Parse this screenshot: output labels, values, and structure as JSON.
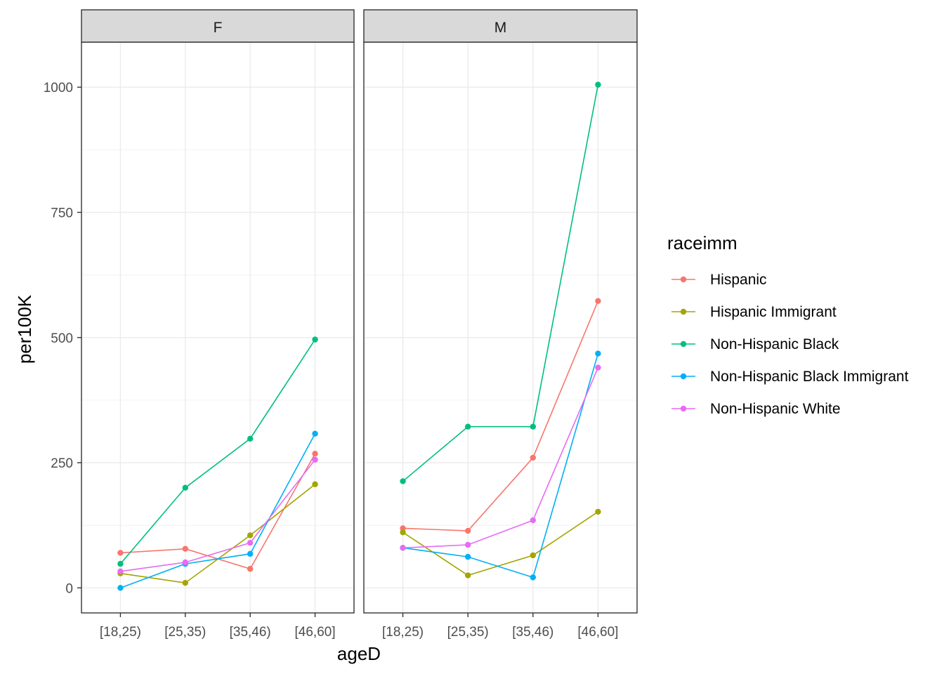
{
  "chart_data": {
    "type": "line",
    "xlabel": "ageD",
    "ylabel": "per100K",
    "categories": [
      "[18,25)",
      "[25,35)",
      "[35,46)",
      "[46,60]"
    ],
    "y_ticks": [
      "0",
      "250",
      "500",
      "750",
      "1000"
    ],
    "y_tick_values": [
      0,
      250,
      500,
      750,
      1000
    ],
    "ylim": [
      -50,
      1090
    ],
    "grid": true,
    "legend": {
      "title": "raceimm",
      "position": "right",
      "entries": [
        "Hispanic",
        "Hispanic Immigrant",
        "Non-Hispanic Black",
        "Non-Hispanic Black Immigrant",
        "Non-Hispanic White"
      ]
    },
    "colors": {
      "Hispanic": "#F8766D",
      "Hispanic Immigrant": "#A3A500",
      "Non-Hispanic Black": "#00BF7D",
      "Non-Hispanic Black Immigrant": "#00B0F6",
      "Non-Hispanic White": "#E76BF3"
    },
    "panels": [
      {
        "label": "F",
        "series": [
          {
            "name": "Hispanic",
            "values": [
              70,
              78,
              38,
              268
            ]
          },
          {
            "name": "Hispanic Immigrant",
            "values": [
              29,
              10,
              105,
              207
            ]
          },
          {
            "name": "Non-Hispanic Black",
            "values": [
              48,
              200,
              298,
              496
            ]
          },
          {
            "name": "Non-Hispanic Black Immigrant",
            "values": [
              0,
              48,
              68,
              308
            ]
          },
          {
            "name": "Non-Hispanic White",
            "values": [
              33,
              51,
              90,
              256
            ]
          }
        ]
      },
      {
        "label": "M",
        "series": [
          {
            "name": "Hispanic",
            "values": [
              119,
              114,
              260,
              573
            ]
          },
          {
            "name": "Hispanic Immigrant",
            "values": [
              111,
              25,
              65,
              152
            ]
          },
          {
            "name": "Non-Hispanic Black",
            "values": [
              213,
              322,
              322,
              1005
            ]
          },
          {
            "name": "Non-Hispanic Black Immigrant",
            "values": [
              80,
              62,
              21,
              468
            ]
          },
          {
            "name": "Non-Hispanic White",
            "values": [
              80,
              86,
              135,
              440
            ]
          }
        ]
      }
    ]
  }
}
